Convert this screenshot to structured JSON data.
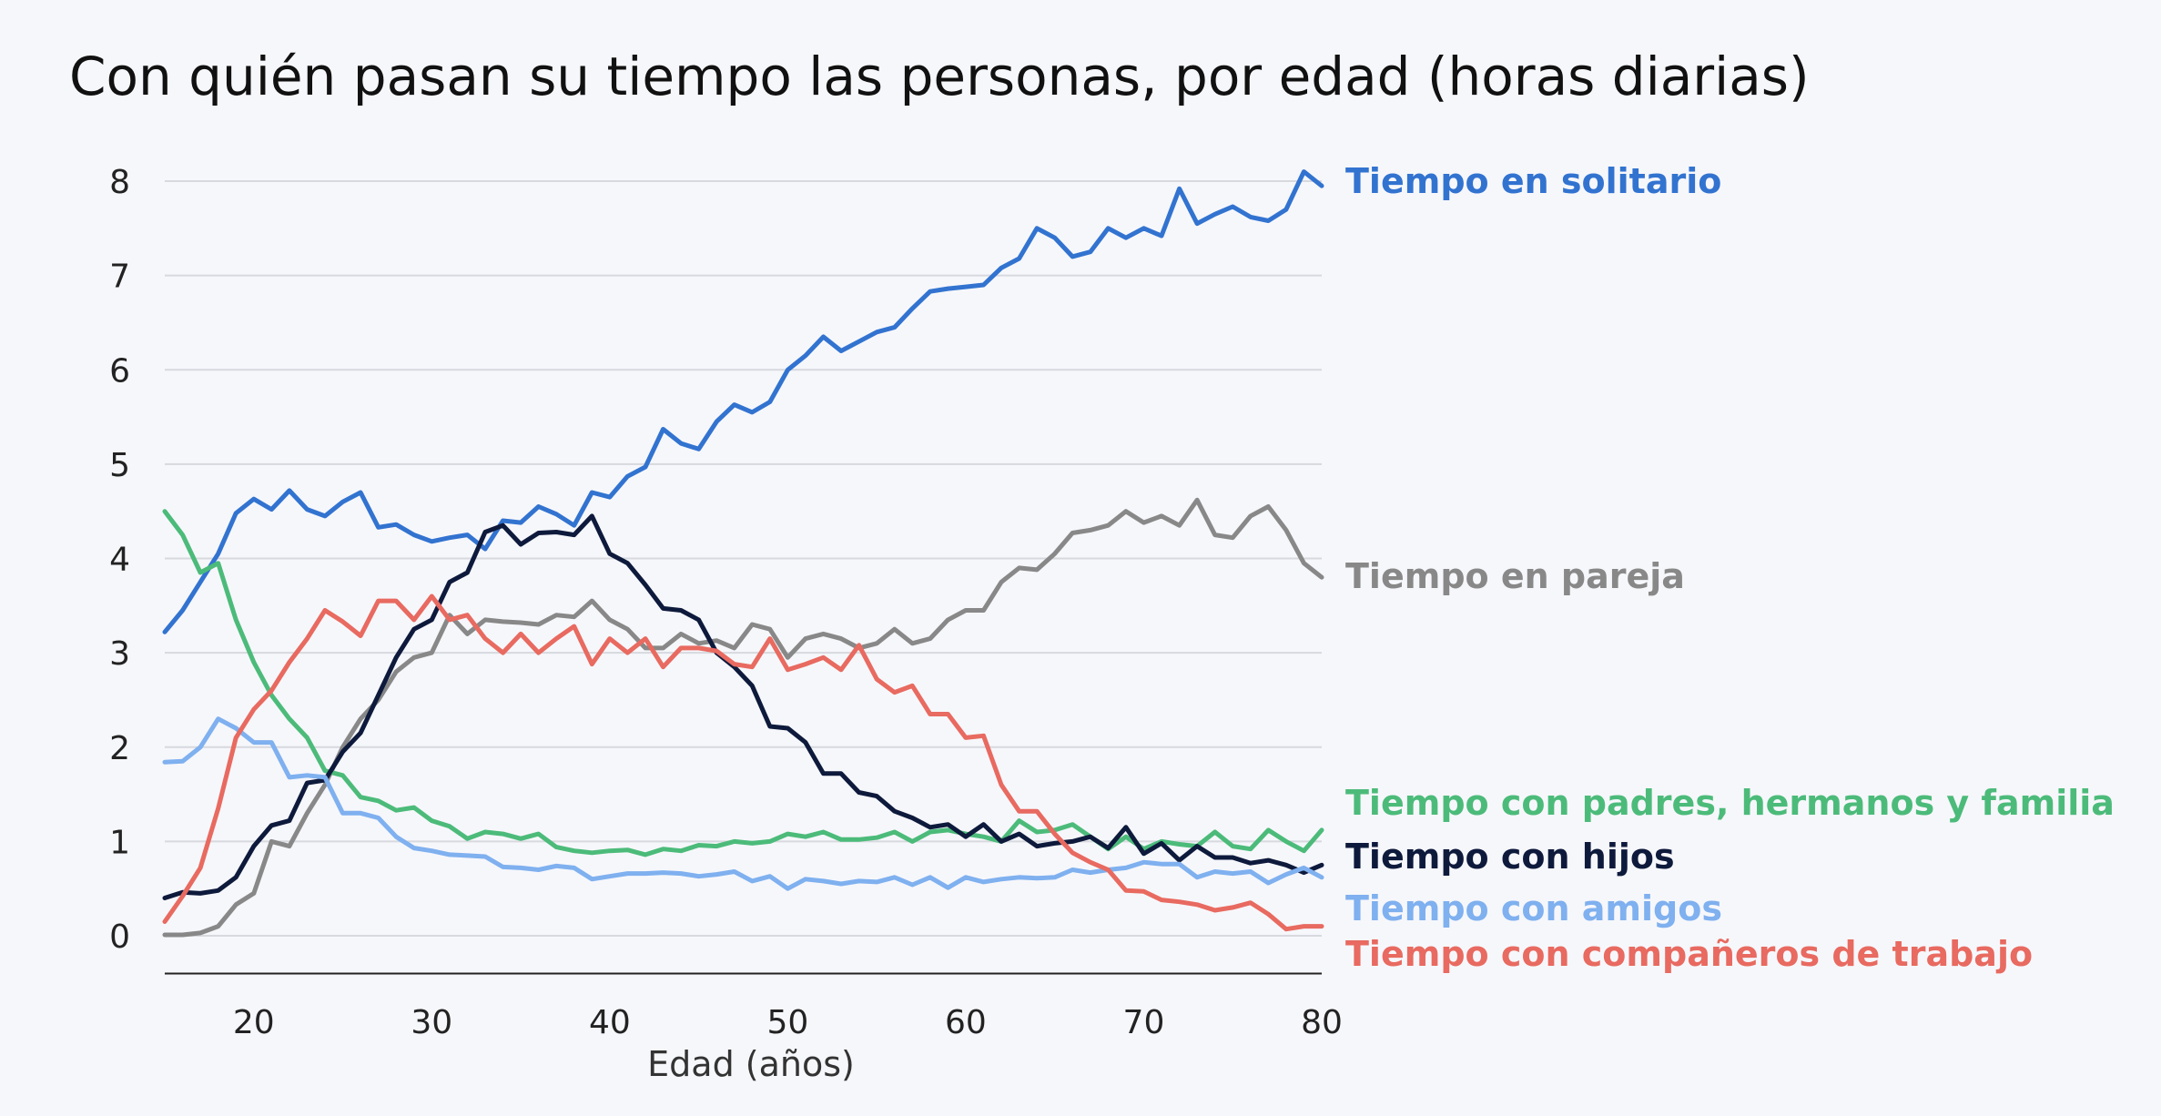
{
  "chart_data": {
    "type": "line",
    "title": "Con quién pasan su tiempo las personas, por edad (horas diarias)",
    "xlabel": "Edad (años)",
    "ylabel": "",
    "xlim": [
      15,
      80
    ],
    "ylim": [
      -0.4,
      8.3
    ],
    "xticks": [
      20,
      30,
      40,
      50,
      60,
      70,
      80
    ],
    "yticks": [
      0,
      1,
      2,
      3,
      4,
      5,
      6,
      7,
      8
    ],
    "grid": true,
    "legend": "inline-right",
    "x": [
      15,
      16,
      17,
      18,
      19,
      20,
      21,
      22,
      23,
      24,
      25,
      26,
      27,
      28,
      29,
      30,
      31,
      32,
      33,
      34,
      35,
      36,
      37,
      38,
      39,
      40,
      41,
      42,
      43,
      44,
      45,
      46,
      47,
      48,
      49,
      50,
      51,
      52,
      53,
      54,
      55,
      56,
      57,
      58,
      59,
      60,
      61,
      62,
      63,
      64,
      65,
      66,
      67,
      68,
      69,
      70,
      71,
      72,
      73,
      74,
      75,
      76,
      77,
      78,
      79,
      80
    ],
    "series": [
      {
        "name": "Tiempo en solitario",
        "color": "#3273d0",
        "values": [
          3.22,
          3.45,
          3.75,
          4.05,
          4.48,
          4.63,
          4.52,
          4.72,
          4.52,
          4.45,
          4.6,
          4.7,
          4.33,
          4.36,
          4.25,
          4.18,
          4.22,
          4.25,
          4.1,
          4.4,
          4.38,
          4.55,
          4.47,
          4.35,
          4.7,
          4.65,
          4.87,
          4.97,
          5.37,
          5.22,
          5.16,
          5.45,
          5.63,
          5.55,
          5.66,
          6.0,
          6.15,
          6.35,
          6.2,
          6.3,
          6.4,
          6.45,
          6.65,
          6.83,
          6.86,
          6.88,
          6.9,
          7.08,
          7.18,
          7.5,
          7.4,
          7.2,
          7.25,
          7.5,
          7.4,
          7.5,
          7.42,
          7.92,
          7.55,
          7.65,
          7.73,
          7.62,
          7.58,
          7.7,
          8.1,
          7.95
        ]
      },
      {
        "name": "Tiempo en pareja",
        "color": "#888888",
        "values": [
          0.01,
          0.01,
          0.03,
          0.1,
          0.33,
          0.45,
          1.0,
          0.95,
          1.3,
          1.6,
          2.0,
          2.3,
          2.5,
          2.8,
          2.95,
          3.0,
          3.4,
          3.2,
          3.35,
          3.33,
          3.32,
          3.3,
          3.4,
          3.38,
          3.55,
          3.35,
          3.25,
          3.05,
          3.05,
          3.2,
          3.1,
          3.13,
          3.05,
          3.3,
          3.25,
          2.95,
          3.15,
          3.2,
          3.15,
          3.05,
          3.1,
          3.25,
          3.1,
          3.15,
          3.35,
          3.45,
          3.45,
          3.75,
          3.9,
          3.88,
          4.05,
          4.27,
          4.3,
          4.35,
          4.5,
          4.38,
          4.45,
          4.35,
          4.62,
          4.25,
          4.22,
          4.45,
          4.55,
          4.3,
          3.95,
          3.8
        ]
      },
      {
        "name": "Tiempo con padres, hermanos y familia",
        "color": "#4cbb7a",
        "values": [
          4.5,
          4.25,
          3.85,
          3.95,
          3.35,
          2.9,
          2.55,
          2.3,
          2.1,
          1.75,
          1.7,
          1.47,
          1.43,
          1.33,
          1.36,
          1.22,
          1.16,
          1.03,
          1.1,
          1.08,
          1.03,
          1.08,
          0.94,
          0.9,
          0.88,
          0.9,
          0.91,
          0.86,
          0.92,
          0.9,
          0.96,
          0.95,
          1.0,
          0.98,
          1.0,
          1.08,
          1.05,
          1.1,
          1.02,
          1.02,
          1.04,
          1.1,
          1.0,
          1.1,
          1.12,
          1.08,
          1.05,
          1.0,
          1.22,
          1.1,
          1.12,
          1.18,
          1.05,
          0.92,
          1.05,
          0.92,
          1.0,
          0.97,
          0.95,
          1.1,
          0.95,
          0.92,
          1.12,
          1.0,
          0.9,
          1.12
        ]
      },
      {
        "name": "Tiempo con hijos",
        "color": "#0e1a3c",
        "values": [
          0.4,
          0.46,
          0.45,
          0.48,
          0.62,
          0.95,
          1.17,
          1.22,
          1.62,
          1.65,
          1.95,
          2.15,
          2.55,
          2.95,
          3.25,
          3.35,
          3.75,
          3.85,
          4.28,
          4.35,
          4.15,
          4.27,
          4.28,
          4.25,
          4.45,
          4.05,
          3.95,
          3.72,
          3.47,
          3.45,
          3.35,
          3.0,
          2.85,
          2.65,
          2.22,
          2.2,
          2.05,
          1.72,
          1.72,
          1.52,
          1.48,
          1.32,
          1.25,
          1.15,
          1.18,
          1.05,
          1.18,
          1.0,
          1.08,
          0.95,
          0.98,
          1.0,
          1.05,
          0.93,
          1.15,
          0.87,
          0.98,
          0.8,
          0.95,
          0.83,
          0.83,
          0.77,
          0.8,
          0.75,
          0.67,
          0.75
        ]
      },
      {
        "name": "Tiempo con amigos",
        "color": "#7fb0ef",
        "values": [
          1.84,
          1.85,
          2.0,
          2.3,
          2.2,
          2.05,
          2.05,
          1.68,
          1.7,
          1.68,
          1.3,
          1.3,
          1.25,
          1.05,
          0.93,
          0.9,
          0.86,
          0.85,
          0.84,
          0.73,
          0.72,
          0.7,
          0.74,
          0.72,
          0.6,
          0.63,
          0.66,
          0.66,
          0.67,
          0.66,
          0.63,
          0.65,
          0.68,
          0.58,
          0.63,
          0.5,
          0.6,
          0.58,
          0.55,
          0.58,
          0.57,
          0.62,
          0.54,
          0.62,
          0.51,
          0.62,
          0.57,
          0.6,
          0.62,
          0.61,
          0.62,
          0.7,
          0.67,
          0.7,
          0.72,
          0.78,
          0.76,
          0.76,
          0.62,
          0.68,
          0.66,
          0.68,
          0.56,
          0.65,
          0.72,
          0.62
        ]
      },
      {
        "name": "Tiempo con compañeros de trabajo",
        "color": "#e86a60",
        "values": [
          0.15,
          0.42,
          0.72,
          1.35,
          2.1,
          2.4,
          2.6,
          2.9,
          3.15,
          3.45,
          3.33,
          3.18,
          3.55,
          3.55,
          3.35,
          3.6,
          3.35,
          3.4,
          3.15,
          3.0,
          3.2,
          3.0,
          3.15,
          3.28,
          2.88,
          3.15,
          3.0,
          3.15,
          2.85,
          3.05,
          3.05,
          3.02,
          2.88,
          2.85,
          3.15,
          2.82,
          2.88,
          2.95,
          2.82,
          3.08,
          2.72,
          2.58,
          2.65,
          2.35,
          2.35,
          2.1,
          2.12,
          1.6,
          1.32,
          1.32,
          1.08,
          0.88,
          0.78,
          0.7,
          0.48,
          0.47,
          0.38,
          0.36,
          0.33,
          0.27,
          0.3,
          0.35,
          0.23,
          0.07,
          0.1,
          0.1
        ]
      }
    ]
  }
}
